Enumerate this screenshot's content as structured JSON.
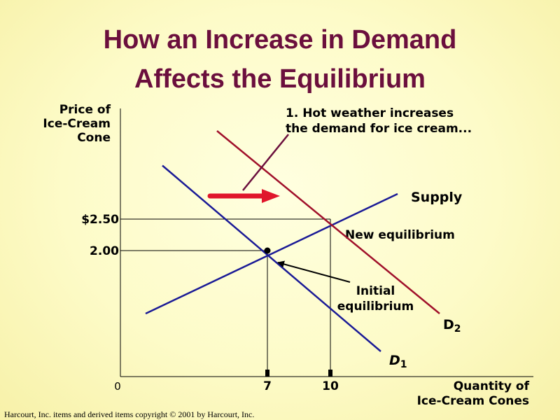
{
  "title": {
    "line1": "How an Increase in Demand",
    "line2": "Affects the Equilibrium"
  },
  "footer": "Harcourt, Inc. items and derived items copyright © 2001  by Harcourt, Inc.",
  "chart_data": {
    "type": "line",
    "title": "How an Increase in Demand Affects the Equilibrium",
    "ylabel_lines": [
      "Price of",
      "Ice-Cream",
      "Cone"
    ],
    "xlabel_lines": [
      "Quantity of",
      "Ice-Cream Cones"
    ],
    "y_ticks": [
      {
        "value": 2.5,
        "label": "$2.50"
      },
      {
        "value": 2.0,
        "label": "2.00"
      }
    ],
    "x_ticks": [
      {
        "value": 7,
        "label": "7"
      },
      {
        "value": 10,
        "label": "10"
      }
    ],
    "origin_label": "0",
    "xlim": [
      0,
      20
    ],
    "ylim": [
      0,
      4.4
    ],
    "series": [
      {
        "name": "Supply",
        "color": "#1a1a96",
        "x": [
          1.2,
          13.2
        ],
        "y": [
          1.0,
          2.9
        ]
      },
      {
        "name": "D1",
        "color": "#1a1a96",
        "x": [
          2.0,
          12.4
        ],
        "y": [
          3.35,
          0.4
        ]
      },
      {
        "name": "D2",
        "color": "#a0102a",
        "x": [
          4.6,
          15.2
        ],
        "y": [
          3.9,
          1.0
        ]
      }
    ],
    "curve_labels": {
      "supply": "Supply",
      "d1_main": "D",
      "d1_sub": "1",
      "d2_main": "D",
      "d2_sub": "2"
    },
    "equilibria": [
      {
        "name": "Initial equilibrium",
        "x": 7,
        "y": 2.0
      },
      {
        "name": "New equilibrium",
        "x": 10,
        "y": 2.5
      }
    ],
    "annotations": {
      "shift_line1": "1. Hot weather increases",
      "shift_line2": "the demand for ice cream...",
      "new_eq": "New equilibrium",
      "initial_line1": "Initial",
      "initial_line2": "equilibrium"
    },
    "shift_arrow_color": "#e0162b"
  }
}
